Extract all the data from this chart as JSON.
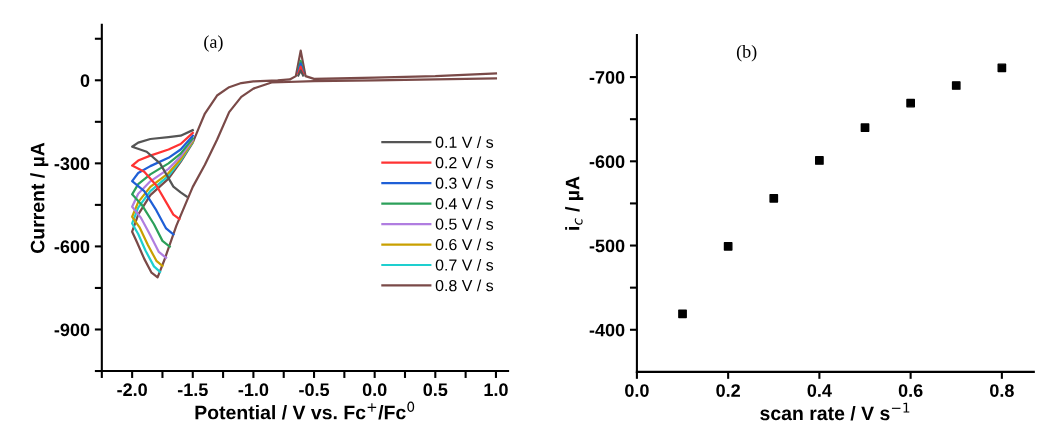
{
  "chart_data": [
    {
      "type": "line",
      "xlabel": "Potential / V vs. Fc$^{+}$/Fc$^{0}$",
      "ylabel": "Current / µA",
      "annotations": [
        "(a)"
      ],
      "xlim": [
        -2.25,
        1.1
      ],
      "xticks": [
        {
          "value": -2.25,
          "label": null
        },
        {
          "value": -2.0,
          "label": "-2.0"
        },
        {
          "value": -1.75,
          "label": null
        },
        -1.5,
        {
          "value": -1.25,
          "label": null
        },
        {
          "value": -1.0,
          "label": "-1.0"
        },
        {
          "value": -0.75,
          "label": null
        },
        -0.5,
        {
          "value": -0.25,
          "label": null
        },
        {
          "value": 0.0,
          "label": "0.0"
        },
        {
          "value": 0.25,
          "label": null
        },
        0.5,
        {
          "value": 0.75,
          "label": null
        },
        {
          "value": 1.0,
          "label": "1.0"
        }
      ],
      "ylim": [
        -1050,
        200
      ],
      "yticks": [
        {
          "value": -1050,
          "label": null
        },
        -900,
        {
          "value": -750,
          "label": null
        },
        -600,
        {
          "value": -450,
          "label": null
        },
        -300,
        {
          "value": -150,
          "label": null
        },
        0,
        {
          "value": 150,
          "label": null
        }
      ],
      "legend": "right",
      "marker": "none",
      "line_style": "solid",
      "series": [
        {
          "name": "0.1 V / s",
          "color": "#555555",
          "x": [
            -1.55,
            -1.6,
            -1.66,
            -1.77,
            -1.88,
            -2.0,
            -1.95,
            -1.85,
            -1.7,
            -1.6,
            -1.5,
            null,
            -0.63,
            -0.61,
            -0.59
          ],
          "values": [
            -420,
            -405,
            -384,
            -300,
            -258,
            -240,
            -225,
            -212,
            -205,
            -200,
            -180,
            null,
            17,
            35,
            17
          ]
        },
        {
          "name": "0.2 V / s",
          "color": "#ff3333",
          "x": [
            -1.61,
            -1.66,
            -1.72,
            -1.8,
            -1.9,
            -2.0,
            -1.95,
            -1.85,
            -1.7,
            -1.6,
            -1.5,
            null,
            -0.63,
            -0.61,
            -0.59
          ],
          "values": [
            -501,
            -485,
            -440,
            -380,
            -330,
            -308,
            -290,
            -272,
            -250,
            -230,
            -190,
            null,
            24,
            49,
            24
          ]
        },
        {
          "name": "0.3 V / s",
          "color": "#1f5fd6",
          "x": [
            -1.66,
            -1.72,
            -1.8,
            -1.9,
            -2.0,
            -1.95,
            -1.85,
            -1.7,
            -1.6,
            -1.5,
            null,
            -0.63,
            -0.61,
            -0.59
          ],
          "values": [
            -557,
            -535,
            -470,
            -400,
            -364,
            -335,
            -310,
            -280,
            -250,
            -200,
            null,
            30,
            60,
            30
          ]
        },
        {
          "name": "0.4 V / s",
          "color": "#2ca05a",
          "x": [
            -1.69,
            -1.75,
            -1.82,
            -1.92,
            -2.0,
            -1.95,
            -1.85,
            -1.7,
            -1.6,
            -1.5,
            null,
            -0.63,
            -0.61,
            -0.59
          ],
          "values": [
            -601,
            -580,
            -520,
            -450,
            -412,
            -375,
            -340,
            -300,
            -265,
            -210,
            null,
            35,
            70,
            35
          ]
        },
        {
          "name": "0.5 V / s",
          "color": "#b07de0",
          "x": [
            -1.72,
            -1.78,
            -1.85,
            -1.93,
            -2.0,
            -1.95,
            -1.85,
            -1.7,
            -1.6,
            -1.5
          ],
          "values": [
            -641,
            -620,
            -560,
            -495,
            -457,
            -410,
            -365,
            -320,
            -275,
            -215
          ]
        },
        {
          "name": "0.6 V / s",
          "color": "#c9a000",
          "x": [
            -1.75,
            -1.8,
            -1.87,
            -1.94,
            -2.0,
            -1.95,
            -1.85,
            -1.7,
            -1.6,
            -1.5
          ],
          "values": [
            -670,
            -652,
            -595,
            -530,
            -493,
            -440,
            -385,
            -335,
            -285,
            -220
          ]
        },
        {
          "name": "0.7 V / s",
          "color": "#1ecfcf",
          "x": [
            -1.77,
            -1.82,
            -1.89,
            -1.95,
            -2.0,
            -1.95,
            -1.85,
            -1.7,
            -1.6,
            -1.5
          ],
          "values": [
            -692,
            -672,
            -615,
            -555,
            -517,
            -460,
            -400,
            -345,
            -290,
            -222
          ]
        },
        {
          "name": "0.8 V / s",
          "color": "#7a4a48",
          "x": [
            1.0,
            0.5,
            0.0,
            -0.5,
            -0.85,
            -1.0,
            -1.1,
            -1.2,
            -1.3,
            -1.4,
            -1.5,
            -1.635,
            -1.735,
            -1.79,
            -1.84,
            -1.9,
            -1.96,
            -2.0,
            -1.95,
            -1.85,
            -1.7,
            -1.6,
            -1.5,
            -1.45,
            -1.4,
            -1.3,
            -1.2,
            -1.1,
            -1.0,
            -0.8,
            -0.7,
            -0.65,
            -0.61,
            -0.57,
            -0.5,
            0.0,
            0.5,
            1.0
          ],
          "values": [
            7,
            3,
            0,
            -3,
            -8,
            -30,
            -60,
            -115,
            -215,
            -305,
            -385,
            -525,
            -650,
            -712,
            -695,
            -645,
            -585,
            -547,
            -485,
            -415,
            -355,
            -295,
            -225,
            -172,
            -120,
            -55,
            -25,
            -10,
            -4,
            0,
            3,
            15,
            107,
            15,
            5,
            10,
            15,
            25
          ]
        }
      ]
    },
    {
      "type": "scatter",
      "xlabel": "scan rate / V s$^{−1}$",
      "ylabel": "i$_{c}$ / µA",
      "annotations": [
        "(b)"
      ],
      "xlim": [
        0.0,
        0.87
      ],
      "xticks": [
        {
          "value": 0.0,
          "label": "0.0"
        },
        0.2,
        0.4,
        0.6,
        0.8
      ],
      "ylim": [
        -350,
        -750
      ],
      "yticks": [
        -400,
        {
          "value": -450,
          "label": null
        },
        -500,
        {
          "value": -550,
          "label": null
        },
        -600,
        {
          "value": -650,
          "label": null
        },
        -700
      ],
      "marker": "square",
      "series": [
        {
          "color": "#000000",
          "x": [
            0.1,
            0.2,
            0.3,
            0.4,
            0.5,
            0.6,
            0.7,
            0.8
          ],
          "values": [
            -419,
            -499,
            -556,
            -601,
            -640,
            -669,
            -690,
            -711
          ]
        }
      ]
    }
  ]
}
